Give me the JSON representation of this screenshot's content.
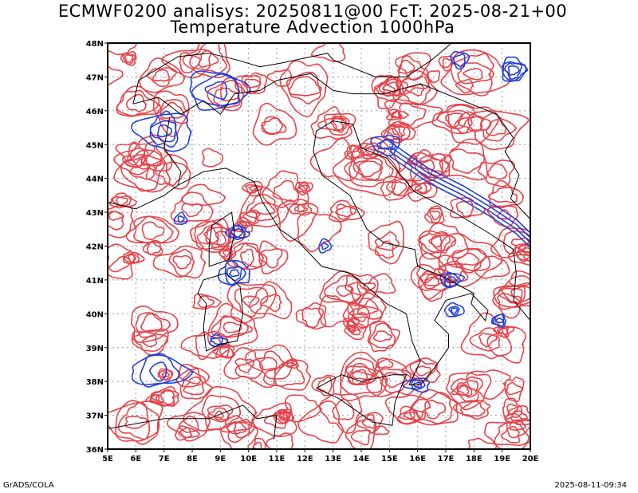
{
  "title": {
    "line1": "ECMWF0200 analisys: 20250811@00 FcT: 2025-08-21+00",
    "line2": "Temperature Advection 1000hPa"
  },
  "footer": {
    "left": "GrADS/COLA",
    "right": "2025-08-11-09:34"
  },
  "map": {
    "lon_range": [
      5,
      20
    ],
    "lat_range": [
      36,
      48
    ],
    "lon_ticks": [
      "5E",
      "6E",
      "7E",
      "8E",
      "9E",
      "10E",
      "11E",
      "12E",
      "13E",
      "14E",
      "15E",
      "16E",
      "17E",
      "18E",
      "19E",
      "20E"
    ],
    "lat_ticks": [
      "36N",
      "37N",
      "38N",
      "39N",
      "40N",
      "41N",
      "42N",
      "43N",
      "44N",
      "45N",
      "46N",
      "47N",
      "48N"
    ],
    "grid": "dotted",
    "colors": {
      "warm_advection": "#e8424a",
      "cold_advection": "#1f3fe0",
      "coastline": "#000000",
      "grid": "#9a9a9a"
    }
  }
}
